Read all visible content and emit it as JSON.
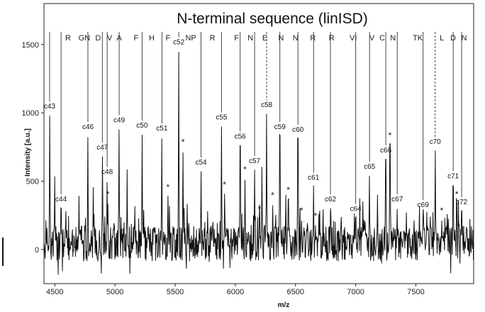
{
  "chart_data": {
    "type": "line",
    "title": "N-terminal sequence (linISD)",
    "xlabel": "m/z",
    "ylabel": "Intensity [a.u.]",
    "xlim": [
      4410,
      7980
    ],
    "ylim": [
      -250,
      1800
    ],
    "xticks": [
      4500,
      5000,
      5500,
      6000,
      6500,
      7000,
      7500
    ],
    "yticks": [
      0,
      500,
      1000,
      1500
    ],
    "sequence_letters": [
      {
        "label": "R",
        "x": 4610
      },
      {
        "label": "GN",
        "x": 4745
      },
      {
        "label": "D",
        "x": 4860
      },
      {
        "label": "V",
        "x": 4955
      },
      {
        "label": "A",
        "x": 5035
      },
      {
        "label": "F",
        "x": 5175
      },
      {
        "label": "H",
        "x": 5305
      },
      {
        "label": "F",
        "x": 5440
      },
      {
        "label": "NP",
        "x": 5630
      },
      {
        "label": "R",
        "x": 5810
      },
      {
        "label": "F",
        "x": 6010
      },
      {
        "label": "N",
        "x": 6125
      },
      {
        "label": "E",
        "x": 6245
      },
      {
        "label": "N",
        "x": 6380
      },
      {
        "label": "N",
        "x": 6500
      },
      {
        "label": "R",
        "x": 6645
      },
      {
        "label": "R",
        "x": 6800
      },
      {
        "label": "VI",
        "x": 6980
      },
      {
        "label": "V",
        "x": 7135
      },
      {
        "label": "C",
        "x": 7220
      },
      {
        "label": "N",
        "x": 7310
      },
      {
        "label": "TK",
        "x": 7515
      },
      {
        "label": "L",
        "x": 7715
      },
      {
        "label": "D",
        "x": 7810
      },
      {
        "label": "N",
        "x": 7900
      }
    ],
    "c_ions": [
      {
        "label": "c43",
        "x": 4457,
        "y": 1000
      },
      {
        "label": "c44",
        "x": 4552,
        "y": 320
      },
      {
        "label": "c46",
        "x": 4775,
        "y": 850
      },
      {
        "label": "c47",
        "x": 4895,
        "y": 700
      },
      {
        "label": "c48",
        "x": 4935,
        "y": 520
      },
      {
        "label": "c49",
        "x": 5035,
        "y": 900
      },
      {
        "label": "c50",
        "x": 5225,
        "y": 860
      },
      {
        "label": "c51",
        "x": 5390,
        "y": 840
      },
      {
        "label": "c52",
        "x": 5530,
        "y": 1470
      },
      {
        "label": "c54",
        "x": 5715,
        "y": 590
      },
      {
        "label": "c55",
        "x": 5885,
        "y": 920
      },
      {
        "label": "c56",
        "x": 6040,
        "y": 780
      },
      {
        "label": "c57",
        "x": 6160,
        "y": 600
      },
      {
        "label": "c58",
        "x": 6260,
        "y": 1010
      },
      {
        "label": "c59",
        "x": 6370,
        "y": 850
      },
      {
        "label": "c60",
        "x": 6520,
        "y": 830
      },
      {
        "label": "c61",
        "x": 6650,
        "y": 480
      },
      {
        "label": "c62",
        "x": 6790,
        "y": 320
      },
      {
        "label": "c64",
        "x": 7000,
        "y": 250
      },
      {
        "label": "c65",
        "x": 7115,
        "y": 560
      },
      {
        "label": "c66",
        "x": 7250,
        "y": 680
      },
      {
        "label": "c67",
        "x": 7345,
        "y": 320
      },
      {
        "label": "c69",
        "x": 7560,
        "y": 280
      },
      {
        "label": "c70",
        "x": 7660,
        "y": 740
      },
      {
        "label": "c71",
        "x": 7810,
        "y": 490
      },
      {
        "label": "c72",
        "x": 7880,
        "y": 300
      }
    ],
    "stars": [
      {
        "x": 5565,
        "y": 780
      },
      {
        "x": 4940,
        "y": 400
      },
      {
        "x": 5440,
        "y": 450
      },
      {
        "x": 5910,
        "y": 470
      },
      {
        "x": 6080,
        "y": 580
      },
      {
        "x": 6200,
        "y": 290
      },
      {
        "x": 6310,
        "y": 390
      },
      {
        "x": 6440,
        "y": 430
      },
      {
        "x": 6550,
        "y": 280
      },
      {
        "x": 6665,
        "y": 240
      },
      {
        "x": 7285,
        "y": 830
      },
      {
        "x": 7715,
        "y": 280
      },
      {
        "x": 7840,
        "y": 400
      }
    ]
  }
}
